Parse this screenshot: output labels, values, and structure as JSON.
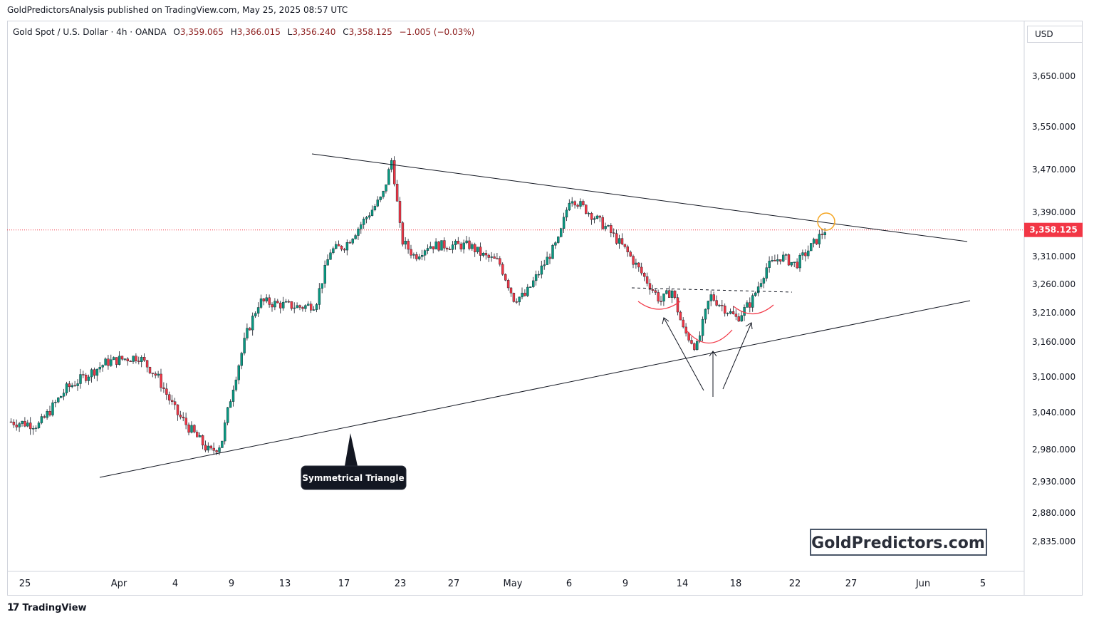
{
  "header": {
    "caption": "GoldPredictorsAnalysis published on TradingView.com, May 25, 2025 08:57 UTC"
  },
  "legend": {
    "symbol": "Gold Spot / U.S. Dollar · 4h · OANDA",
    "o_label": "O",
    "o_value": "3,359.065",
    "h_label": "H",
    "h_value": "3,366.015",
    "l_label": "L",
    "l_value": "3,356.240",
    "c_label": "C",
    "c_value": "3,358.125",
    "change": "−1.005 (−0.03%)"
  },
  "currency": "USD",
  "watermark": "GoldPredictors.com",
  "footer": {
    "brand": "TradingView",
    "icon": "tradingview-logo-icon"
  },
  "colors": {
    "up": "#089981",
    "down": "#f23645",
    "current_price_bg": "#f23645",
    "circle": "#f5a623",
    "pattern": "#f23645"
  },
  "chart_data": {
    "type": "candlestick",
    "timeframe": "4h",
    "y_tick_labels": [
      "3,650.000",
      "3,550.000",
      "3,470.000",
      "3,390.000",
      "3,310.000",
      "3,260.000",
      "3,210.000",
      "3,160.000",
      "3,100.000",
      "3,040.000",
      "2,980.000",
      "2,930.000",
      "2,880.000",
      "2,835.000"
    ],
    "x_tick_labels": [
      "25",
      "Apr",
      "4",
      "9",
      "13",
      "17",
      "23",
      "27",
      "May",
      "6",
      "9",
      "14",
      "18",
      "22",
      "27",
      "Jun",
      "5"
    ],
    "current_price": "3,358.125",
    "annotations": {
      "pattern_label": "Symmetrical Triangle"
    },
    "close_path": [
      {
        "date": "2025-03-24",
        "close": 3025
      },
      {
        "date": "2025-03-26",
        "close": 3020
      },
      {
        "date": "2025-03-28",
        "close": 3080
      },
      {
        "date": "2025-03-31",
        "close": 3125
      },
      {
        "date": "2025-04-02",
        "close": 3135
      },
      {
        "date": "2025-04-03",
        "close": 3100
      },
      {
        "date": "2025-04-04",
        "close": 3040
      },
      {
        "date": "2025-04-07",
        "close": 2975
      },
      {
        "date": "2025-04-08",
        "close": 2990
      },
      {
        "date": "2025-04-09",
        "close": 3080
      },
      {
        "date": "2025-04-10",
        "close": 3170
      },
      {
        "date": "2025-04-11",
        "close": 3230
      },
      {
        "date": "2025-04-14",
        "close": 3220
      },
      {
        "date": "2025-04-15",
        "close": 3225
      },
      {
        "date": "2025-04-16",
        "close": 3320
      },
      {
        "date": "2025-04-17",
        "close": 3330
      },
      {
        "date": "2025-04-21",
        "close": 3420
      },
      {
        "date": "2025-04-22",
        "close": 3490
      },
      {
        "date": "2025-04-23",
        "close": 3340
      },
      {
        "date": "2025-04-24",
        "close": 3310
      },
      {
        "date": "2025-04-25",
        "close": 3330
      },
      {
        "date": "2025-04-28",
        "close": 3330
      },
      {
        "date": "2025-04-29",
        "close": 3310
      },
      {
        "date": "2025-04-30",
        "close": 3300
      },
      {
        "date": "2025-05-01",
        "close": 3235
      },
      {
        "date": "2025-05-02",
        "close": 3240
      },
      {
        "date": "2025-05-05",
        "close": 3340
      },
      {
        "date": "2025-05-06",
        "close": 3420
      },
      {
        "date": "2025-05-07",
        "close": 3390
      },
      {
        "date": "2025-05-08",
        "close": 3360
      },
      {
        "date": "2025-05-09",
        "close": 3320
      },
      {
        "date": "2025-05-12",
        "close": 3230
      },
      {
        "date": "2025-05-13",
        "close": 3250
      },
      {
        "date": "2025-05-14",
        "close": 3180
      },
      {
        "date": "2025-05-15",
        "close": 3150
      },
      {
        "date": "2025-05-16",
        "close": 3240
      },
      {
        "date": "2025-05-18",
        "close": 3200
      },
      {
        "date": "2025-05-19",
        "close": 3230
      },
      {
        "date": "2025-05-20",
        "close": 3290
      },
      {
        "date": "2025-05-21",
        "close": 3310
      },
      {
        "date": "2025-05-22",
        "close": 3295
      },
      {
        "date": "2025-05-23",
        "close": 3358.125
      }
    ]
  }
}
